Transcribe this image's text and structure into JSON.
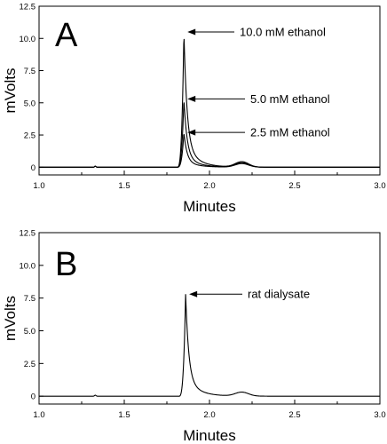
{
  "chart_data": [
    {
      "panel": "A",
      "type": "line",
      "xlabel": "Minutes",
      "ylabel": "mVolts",
      "xlim": [
        1.0,
        3.0
      ],
      "ylim": [
        -0.6,
        12.5
      ],
      "x_ticks": [
        "1.0",
        "1.5",
        "2.0",
        "2.5",
        "3.0"
      ],
      "y_ticks": [
        "0",
        "2.5",
        "5.0",
        "7.5",
        "10.0",
        "12.5"
      ],
      "grid": false,
      "series": [
        {
          "name": "10.0 mM ethanol",
          "peak_x": 1.85,
          "peak_y": 10.5,
          "hump_y": 0.42
        },
        {
          "name": "5.0 mM ethanol",
          "peak_x": 1.85,
          "peak_y": 5.3,
          "hump_y": 0.34
        },
        {
          "name": "2.5 mM ethanol",
          "peak_x": 1.85,
          "peak_y": 2.7,
          "hump_y": 0.28
        }
      ],
      "annotations": [
        {
          "text": "10.0 mM ethanol",
          "x": 1.85,
          "y": 10.5
        },
        {
          "text": "5.0 mM ethanol",
          "x": 1.85,
          "y": 5.3
        },
        {
          "text": "2.5 mM ethanol",
          "x": 1.85,
          "y": 2.7
        }
      ]
    },
    {
      "panel": "B",
      "type": "line",
      "xlabel": "Minutes",
      "ylabel": "mVolts",
      "xlim": [
        1.0,
        3.0
      ],
      "ylim": [
        -0.6,
        12.5
      ],
      "x_ticks": [
        "1.0",
        "1.5",
        "2.0",
        "2.5",
        "3.0"
      ],
      "y_ticks": [
        "0",
        "2.5",
        "5.0",
        "7.5",
        "10.0",
        "12.5"
      ],
      "grid": false,
      "series": [
        {
          "name": "rat dialysate",
          "peak_x": 1.86,
          "peak_y": 7.8,
          "hump_y": 0.3
        }
      ],
      "annotations": [
        {
          "text": "rat dialysate",
          "x": 1.86,
          "y": 7.8
        }
      ]
    }
  ]
}
